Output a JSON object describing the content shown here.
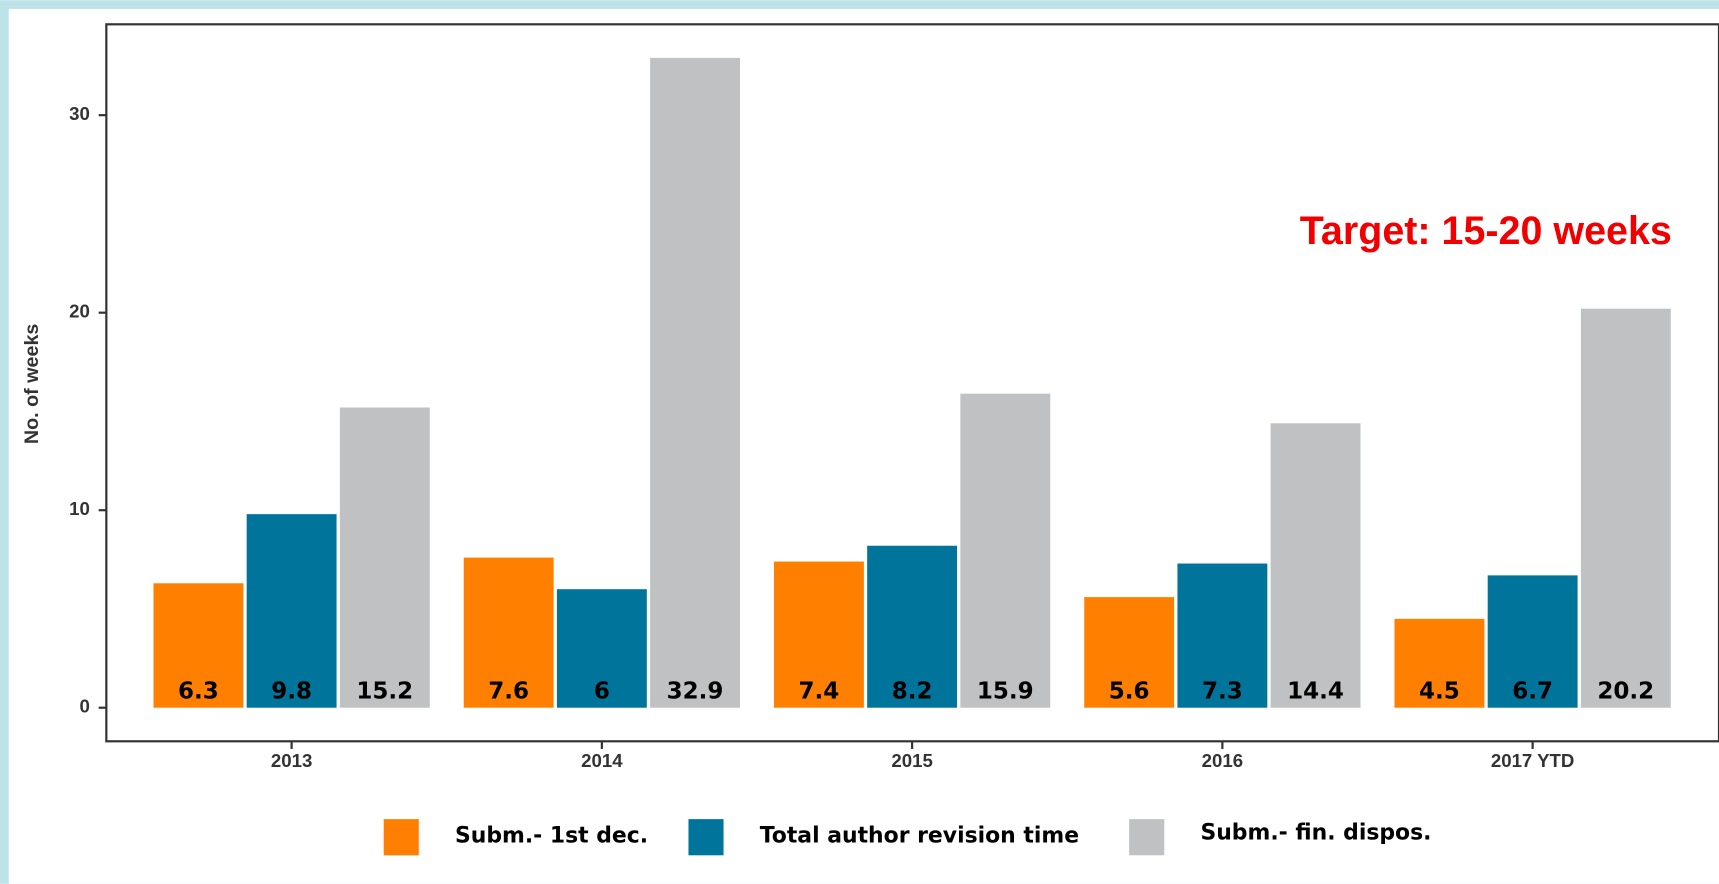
{
  "chart_data": {
    "type": "bar",
    "y_label": "No. of weeks",
    "annotation": "Target: 15-20 weeks",
    "categories": [
      "2013",
      "2014",
      "2015",
      "2016",
      "2017 YTD"
    ],
    "series": [
      {
        "name": "Subm.- 1st dec.",
        "color": "#ff8000",
        "values": [
          6.3,
          7.6,
          7.4,
          5.6,
          4.5
        ]
      },
      {
        "name": "Total author revision time",
        "color": "#00749a",
        "values": [
          9.8,
          6,
          8.2,
          7.3,
          6.7
        ]
      },
      {
        "name": "Subm.- fin. dispos.",
        "color": "#c0c1c3",
        "values": [
          15.2,
          32.9,
          15.9,
          14.4,
          20.2
        ]
      }
    ],
    "ylim": [
      -1.7,
      34.6
    ],
    "yticks": [
      0,
      10,
      20,
      30
    ],
    "legend": "bottom"
  }
}
